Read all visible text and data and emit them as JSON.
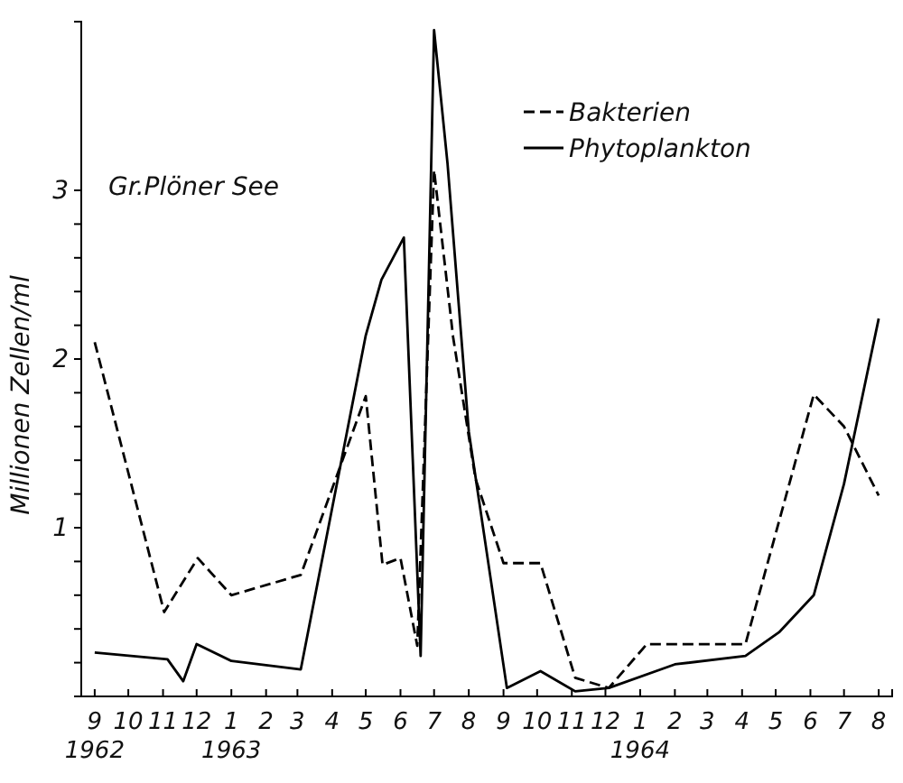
{
  "chart_data": {
    "type": "line",
    "ylabel": "Millionen  Zellen/ml",
    "annotations": [
      "Gr.Plöner See"
    ],
    "xlim": [
      "1962-08-20",
      "1964-08-13"
    ],
    "ylim": [
      0,
      4
    ],
    "xticks": [
      {
        "value": "1962-09-01",
        "label": "9\n1962"
      },
      {
        "value": "1962-10-01",
        "label": "10"
      },
      {
        "value": "1962-11-01",
        "label": "11"
      },
      {
        "value": "1962-12-01",
        "label": "12"
      },
      {
        "value": "1963-01-01",
        "label": "1\n1963"
      },
      {
        "value": "1963-02-01",
        "label": "2"
      },
      {
        "value": "1963-03-01",
        "label": "3"
      },
      {
        "value": "1963-04-01",
        "label": "4"
      },
      {
        "value": "1963-05-01",
        "label": "5"
      },
      {
        "value": "1963-06-01",
        "label": "6"
      },
      {
        "value": "1963-07-01",
        "label": "7"
      },
      {
        "value": "1963-08-01",
        "label": "8"
      },
      {
        "value": "1963-09-01",
        "label": "9"
      },
      {
        "value": "1963-10-01",
        "label": "10"
      },
      {
        "value": "1963-11-01",
        "label": "11"
      },
      {
        "value": "1963-12-01",
        "label": "12"
      },
      {
        "value": "1964-01-01",
        "label": "1\n1964"
      },
      {
        "value": "1964-02-01",
        "label": "2"
      },
      {
        "value": "1964-03-01",
        "label": "3"
      },
      {
        "value": "1964-04-01",
        "label": "4"
      },
      {
        "value": "1964-05-01",
        "label": "5"
      },
      {
        "value": "1964-06-01",
        "label": "6"
      },
      {
        "value": "1964-07-01",
        "label": "7"
      },
      {
        "value": "1964-08-01",
        "label": "8"
      }
    ],
    "yticks": [
      {
        "value": 0.2,
        "label": null
      },
      {
        "value": 0.4,
        "label": null
      },
      {
        "value": 0.6,
        "label": null
      },
      {
        "value": 0.8,
        "label": null
      },
      1,
      {
        "value": 1.2,
        "label": null
      },
      {
        "value": 1.4,
        "label": null
      },
      {
        "value": 1.6,
        "label": null
      },
      {
        "value": 1.8,
        "label": null
      },
      2,
      {
        "value": 2.2,
        "label": null
      },
      {
        "value": 2.4,
        "label": null
      },
      {
        "value": 2.6,
        "label": null
      },
      {
        "value": 2.8,
        "label": null
      },
      3
    ],
    "legend": "top",
    "grid": false,
    "series": [
      {
        "name": "Bakterien",
        "color": "#000000",
        "line_style": "dashed",
        "x": [
          "1962-09-01",
          "1962-11-02",
          "1962-12-02",
          "1963-01-01",
          "1963-03-04",
          "1963-05-01",
          "1963-05-16",
          "1963-06-01",
          "1963-06-16",
          "1963-07-01",
          "1963-07-18",
          "1963-08-07",
          "1963-09-01",
          "1963-10-04",
          "1963-11-04",
          "1963-12-04",
          "1964-01-07",
          "1964-04-04",
          "1964-06-04",
          "1964-07-01",
          "1964-08-01"
        ],
        "values": [
          2.1,
          0.5,
          0.82,
          0.6,
          0.72,
          1.78,
          0.78,
          0.82,
          0.3,
          3.12,
          2.13,
          1.29,
          0.79,
          0.79,
          0.11,
          0.05,
          0.31,
          0.31,
          1.79,
          1.6,
          1.19
        ]
      },
      {
        "name": "Phytoplankton",
        "color": "#000000",
        "line_style": "solid",
        "x": [
          "1962-09-01",
          "1962-11-05",
          "1962-11-19",
          "1962-12-01",
          "1963-01-01",
          "1963-03-04",
          "1963-05-01",
          "1963-05-15",
          "1963-06-04",
          "1963-06-19",
          "1963-07-01",
          "1963-07-13",
          "1963-08-01",
          "1963-09-04",
          "1963-10-04",
          "1963-11-04",
          "1963-12-04",
          "1964-02-01",
          "1964-04-04",
          "1964-05-04",
          "1964-06-04",
          "1964-07-01",
          "1964-08-01"
        ],
        "values": [
          0.26,
          0.22,
          0.09,
          0.31,
          0.21,
          0.16,
          2.14,
          2.47,
          2.72,
          0.24,
          3.95,
          3.16,
          1.57,
          0.05,
          0.15,
          0.03,
          0.05,
          0.19,
          0.24,
          0.38,
          0.6,
          1.26,
          2.24
        ]
      }
    ]
  }
}
